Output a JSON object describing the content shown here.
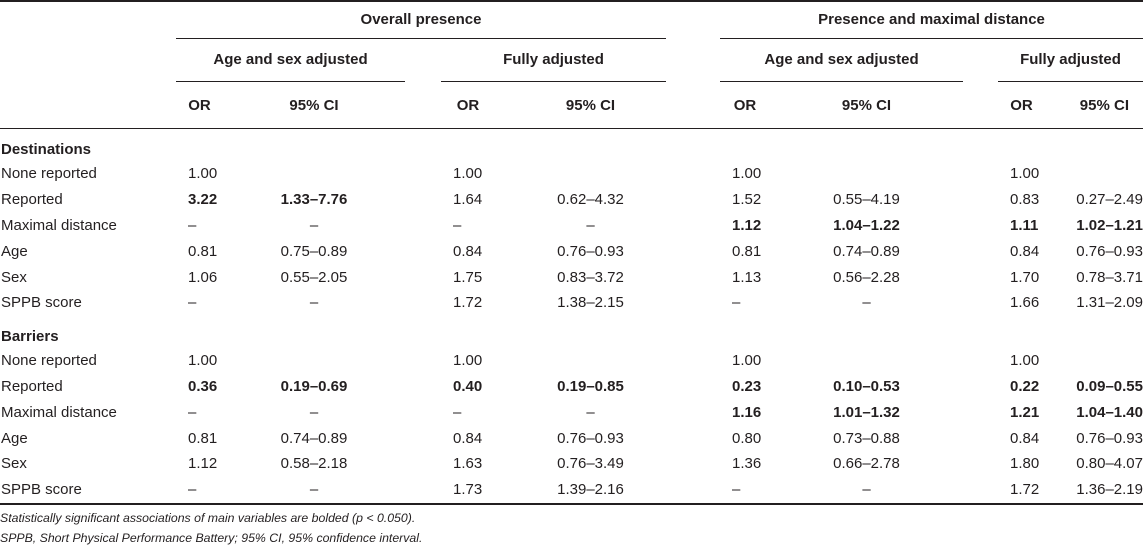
{
  "header": {
    "group1": "Overall presence",
    "group2": "Presence and maximal distance",
    "sub1": "Age and sex adjusted",
    "sub2": "Fully adjusted",
    "sub3": "Age and sex adjusted",
    "sub4": "Fully adjusted",
    "or": "OR",
    "ci": "95% CI"
  },
  "sections": [
    {
      "title": "Destinations",
      "rows": [
        {
          "label": "None reported",
          "cells": [
            "1.00",
            "",
            "1.00",
            "",
            "1.00",
            "",
            "1.00",
            ""
          ],
          "bold": [
            false,
            false,
            false,
            false,
            false,
            false,
            false,
            false
          ]
        },
        {
          "label": "Reported",
          "cells": [
            "3.22",
            "1.33–7.76",
            "1.64",
            "0.62–4.32",
            "1.52",
            "0.55–4.19",
            "0.83",
            "0.27–2.49"
          ],
          "bold": [
            true,
            true,
            false,
            false,
            false,
            false,
            false,
            false
          ]
        },
        {
          "label": "Maximal distance",
          "cells": [
            "–",
            "–",
            "–",
            "–",
            "1.12",
            "1.04–1.22",
            "1.11",
            "1.02–1.21"
          ],
          "bold": [
            false,
            false,
            false,
            false,
            true,
            true,
            true,
            true
          ]
        },
        {
          "label": "Age",
          "cells": [
            "0.81",
            "0.75–0.89",
            "0.84",
            "0.76–0.93",
            "0.81",
            "0.74–0.89",
            "0.84",
            "0.76–0.93"
          ],
          "bold": [
            false,
            false,
            false,
            false,
            false,
            false,
            false,
            false
          ]
        },
        {
          "label": "Sex",
          "cells": [
            "1.06",
            "0.55–2.05",
            "1.75",
            "0.83–3.72",
            "1.13",
            "0.56–2.28",
            "1.70",
            "0.78–3.71"
          ],
          "bold": [
            false,
            false,
            false,
            false,
            false,
            false,
            false,
            false
          ]
        },
        {
          "label": "SPPB score",
          "cells": [
            "–",
            "–",
            "1.72",
            "1.38–2.15",
            "–",
            "–",
            "1.66",
            "1.31–2.09"
          ],
          "bold": [
            false,
            false,
            false,
            false,
            false,
            false,
            false,
            false
          ]
        }
      ]
    },
    {
      "title": "Barriers",
      "rows": [
        {
          "label": "None reported",
          "cells": [
            "1.00",
            "",
            "1.00",
            "",
            "1.00",
            "",
            "1.00",
            ""
          ],
          "bold": [
            false,
            false,
            false,
            false,
            false,
            false,
            false,
            false
          ]
        },
        {
          "label": "Reported",
          "cells": [
            "0.36",
            "0.19–0.69",
            "0.40",
            "0.19–0.85",
            "0.23",
            "0.10–0.53",
            "0.22",
            "0.09–0.55"
          ],
          "bold": [
            true,
            true,
            true,
            true,
            true,
            true,
            true,
            true
          ]
        },
        {
          "label": "Maximal distance",
          "cells": [
            "–",
            "–",
            "–",
            "–",
            "1.16",
            "1.01–1.32",
            "1.21",
            "1.04–1.40"
          ],
          "bold": [
            false,
            false,
            false,
            false,
            true,
            true,
            true,
            true
          ]
        },
        {
          "label": "Age",
          "cells": [
            "0.81",
            "0.74–0.89",
            "0.84",
            "0.76–0.93",
            "0.80",
            "0.73–0.88",
            "0.84",
            "0.76–0.93"
          ],
          "bold": [
            false,
            false,
            false,
            false,
            false,
            false,
            false,
            false
          ]
        },
        {
          "label": "Sex",
          "cells": [
            "1.12",
            "0.58–2.18",
            "1.63",
            "0.76–3.49",
            "1.36",
            "0.66–2.78",
            "1.80",
            "0.80–4.07"
          ],
          "bold": [
            false,
            false,
            false,
            false,
            false,
            false,
            false,
            false
          ]
        },
        {
          "label": "SPPB score",
          "cells": [
            "–",
            "–",
            "1.73",
            "1.39–2.16",
            "–",
            "–",
            "1.72",
            "1.36–2.19"
          ],
          "bold": [
            false,
            false,
            false,
            false,
            false,
            false,
            false,
            false
          ]
        }
      ]
    }
  ],
  "notes": {
    "line1": "Statistically significant associations of main variables are bolded (p < 0.050).",
    "line2": "SPPB, Short Physical Performance Battery; 95% CI, 95% confidence interval."
  }
}
